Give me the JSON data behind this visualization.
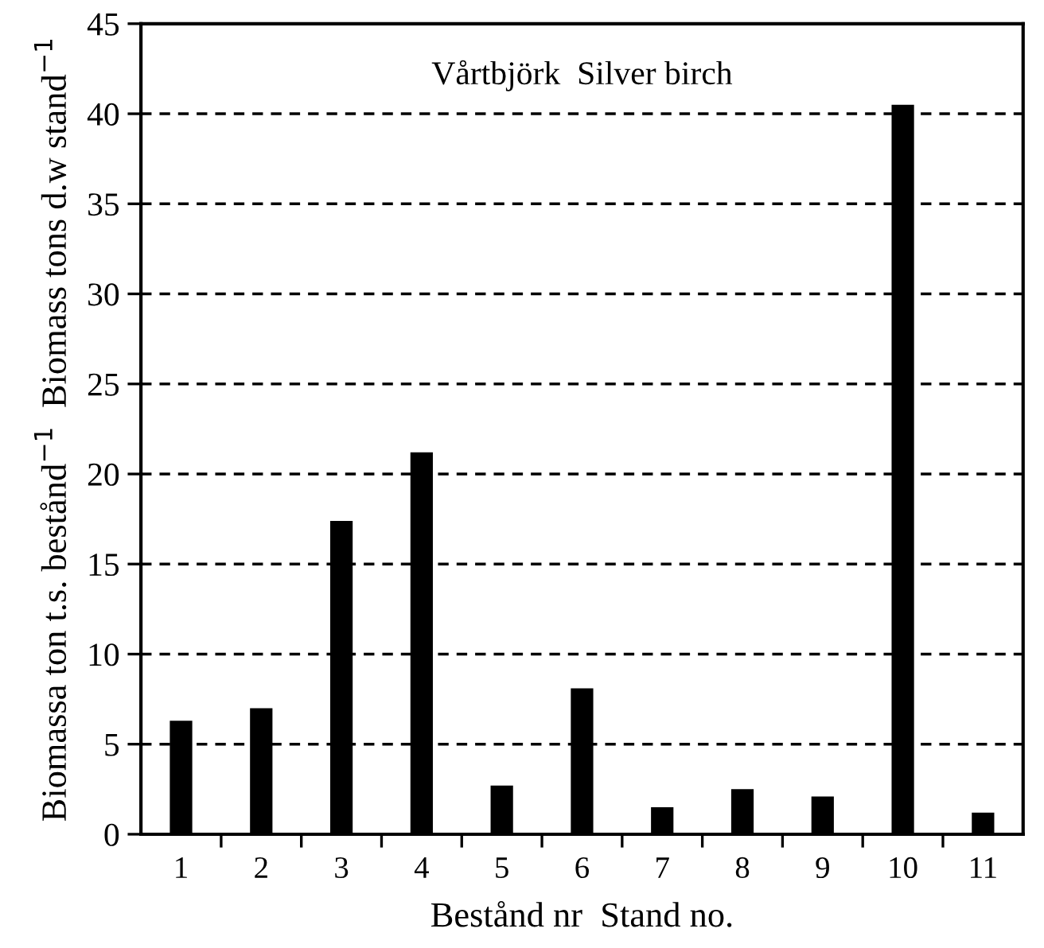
{
  "chart_data": {
    "type": "bar",
    "title": "Vårtbjörk  Silver birch",
    "xlabel": "Bestånd nr  Stand no.",
    "ylabel": "Biomassa ton t.s. bestånd$^{−1}$  Biomass tons d.w stand$^{−1}$",
    "categories": [
      "1",
      "2",
      "3",
      "4",
      "5",
      "6",
      "7",
      "8",
      "9",
      "10",
      "11"
    ],
    "values": [
      6.3,
      7.0,
      17.4,
      21.2,
      2.7,
      8.1,
      1.5,
      2.5,
      2.1,
      40.5,
      1.2
    ],
    "color": "#000000",
    "ylim": [
      0,
      45
    ],
    "yticks": [
      0,
      5,
      10,
      15,
      20,
      25,
      30,
      35,
      40,
      45
    ],
    "grid": "y",
    "line_style": "dashed",
    "legend": false
  }
}
